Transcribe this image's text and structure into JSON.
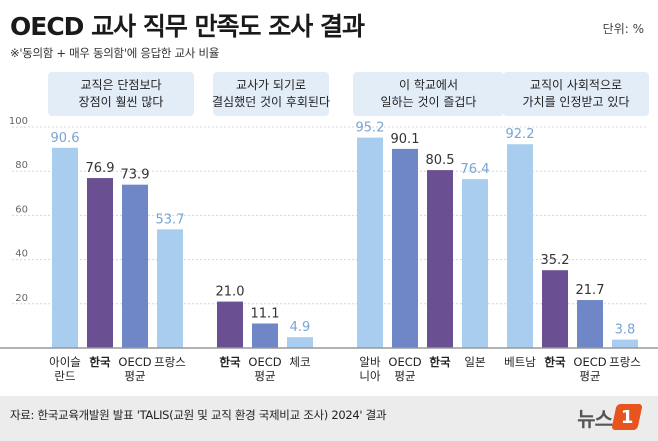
{
  "title": "OECD 교사 직무 만족도 조사 결과",
  "unit": "단위: %",
  "subtitle": "※'동의함 + 매우 동의함'에 응답한 교사 비율",
  "source": "자료: 한국교육개발원 발표 'TALIS(교원 및 교직 환경 국제비교 조사) 2024' 결과",
  "logo": {
    "text": "뉴스",
    "mark": "1"
  },
  "colors": {
    "light_blue": "#a8cdef",
    "navy": "#6f86c7",
    "purple": "#6b4f93",
    "panel": "#e3edf8",
    "grid": "#d6d6d6",
    "value_light": "#7aa4d4",
    "value_dark": "#333333"
  },
  "chart_data": {
    "type": "bar",
    "ylim": [
      0,
      100
    ],
    "y_ticks": [
      20,
      40,
      60,
      80,
      100
    ],
    "grid": true,
    "groups": [
      {
        "header": [
          "교직은 단점보다",
          "장점이 훨씬 많다"
        ],
        "bars": [
          {
            "label": [
              "아이슬",
              "란드"
            ],
            "value": 90.6,
            "color": "light_blue",
            "bold": false
          },
          {
            "label": [
              "한국"
            ],
            "value": 76.9,
            "color": "purple",
            "bold": true
          },
          {
            "label": [
              "OECD",
              "평균"
            ],
            "value": 73.9,
            "color": "navy",
            "bold": false
          },
          {
            "label": [
              "프랑스"
            ],
            "value": 53.7,
            "color": "light_blue",
            "bold": false
          }
        ]
      },
      {
        "header": [
          "교사가 되기로",
          "결심했던 것이 후회된다"
        ],
        "bars": [
          {
            "label": [
              "한국"
            ],
            "value": 21.0,
            "color": "purple",
            "bold": true
          },
          {
            "label": [
              "OECD",
              "평균"
            ],
            "value": 11.1,
            "color": "navy",
            "bold": false
          },
          {
            "label": [
              "체코"
            ],
            "value": 4.9,
            "color": "light_blue",
            "bold": false
          }
        ]
      },
      {
        "header": [
          "이 학교에서",
          "일하는 것이 즐겁다"
        ],
        "bars": [
          {
            "label": [
              "알바",
              "니아"
            ],
            "value": 95.2,
            "color": "light_blue",
            "bold": false
          },
          {
            "label": [
              "OECD",
              "평균"
            ],
            "value": 90.1,
            "color": "navy",
            "bold": false
          },
          {
            "label": [
              "한국"
            ],
            "value": 80.5,
            "color": "purple",
            "bold": true
          },
          {
            "label": [
              "일본"
            ],
            "value": 76.4,
            "color": "light_blue",
            "bold": false
          }
        ]
      },
      {
        "header": [
          "교직이 사회적으로",
          "가치를 인정받고 있다"
        ],
        "bars": [
          {
            "label": [
              "베트남"
            ],
            "value": 92.2,
            "color": "light_blue",
            "bold": false
          },
          {
            "label": [
              "한국"
            ],
            "value": 35.2,
            "color": "purple",
            "bold": true
          },
          {
            "label": [
              "OECD",
              "평균"
            ],
            "value": 21.7,
            "color": "navy",
            "bold": false
          },
          {
            "label": [
              "프랑스"
            ],
            "value": 3.8,
            "color": "light_blue",
            "bold": false
          }
        ]
      }
    ]
  }
}
